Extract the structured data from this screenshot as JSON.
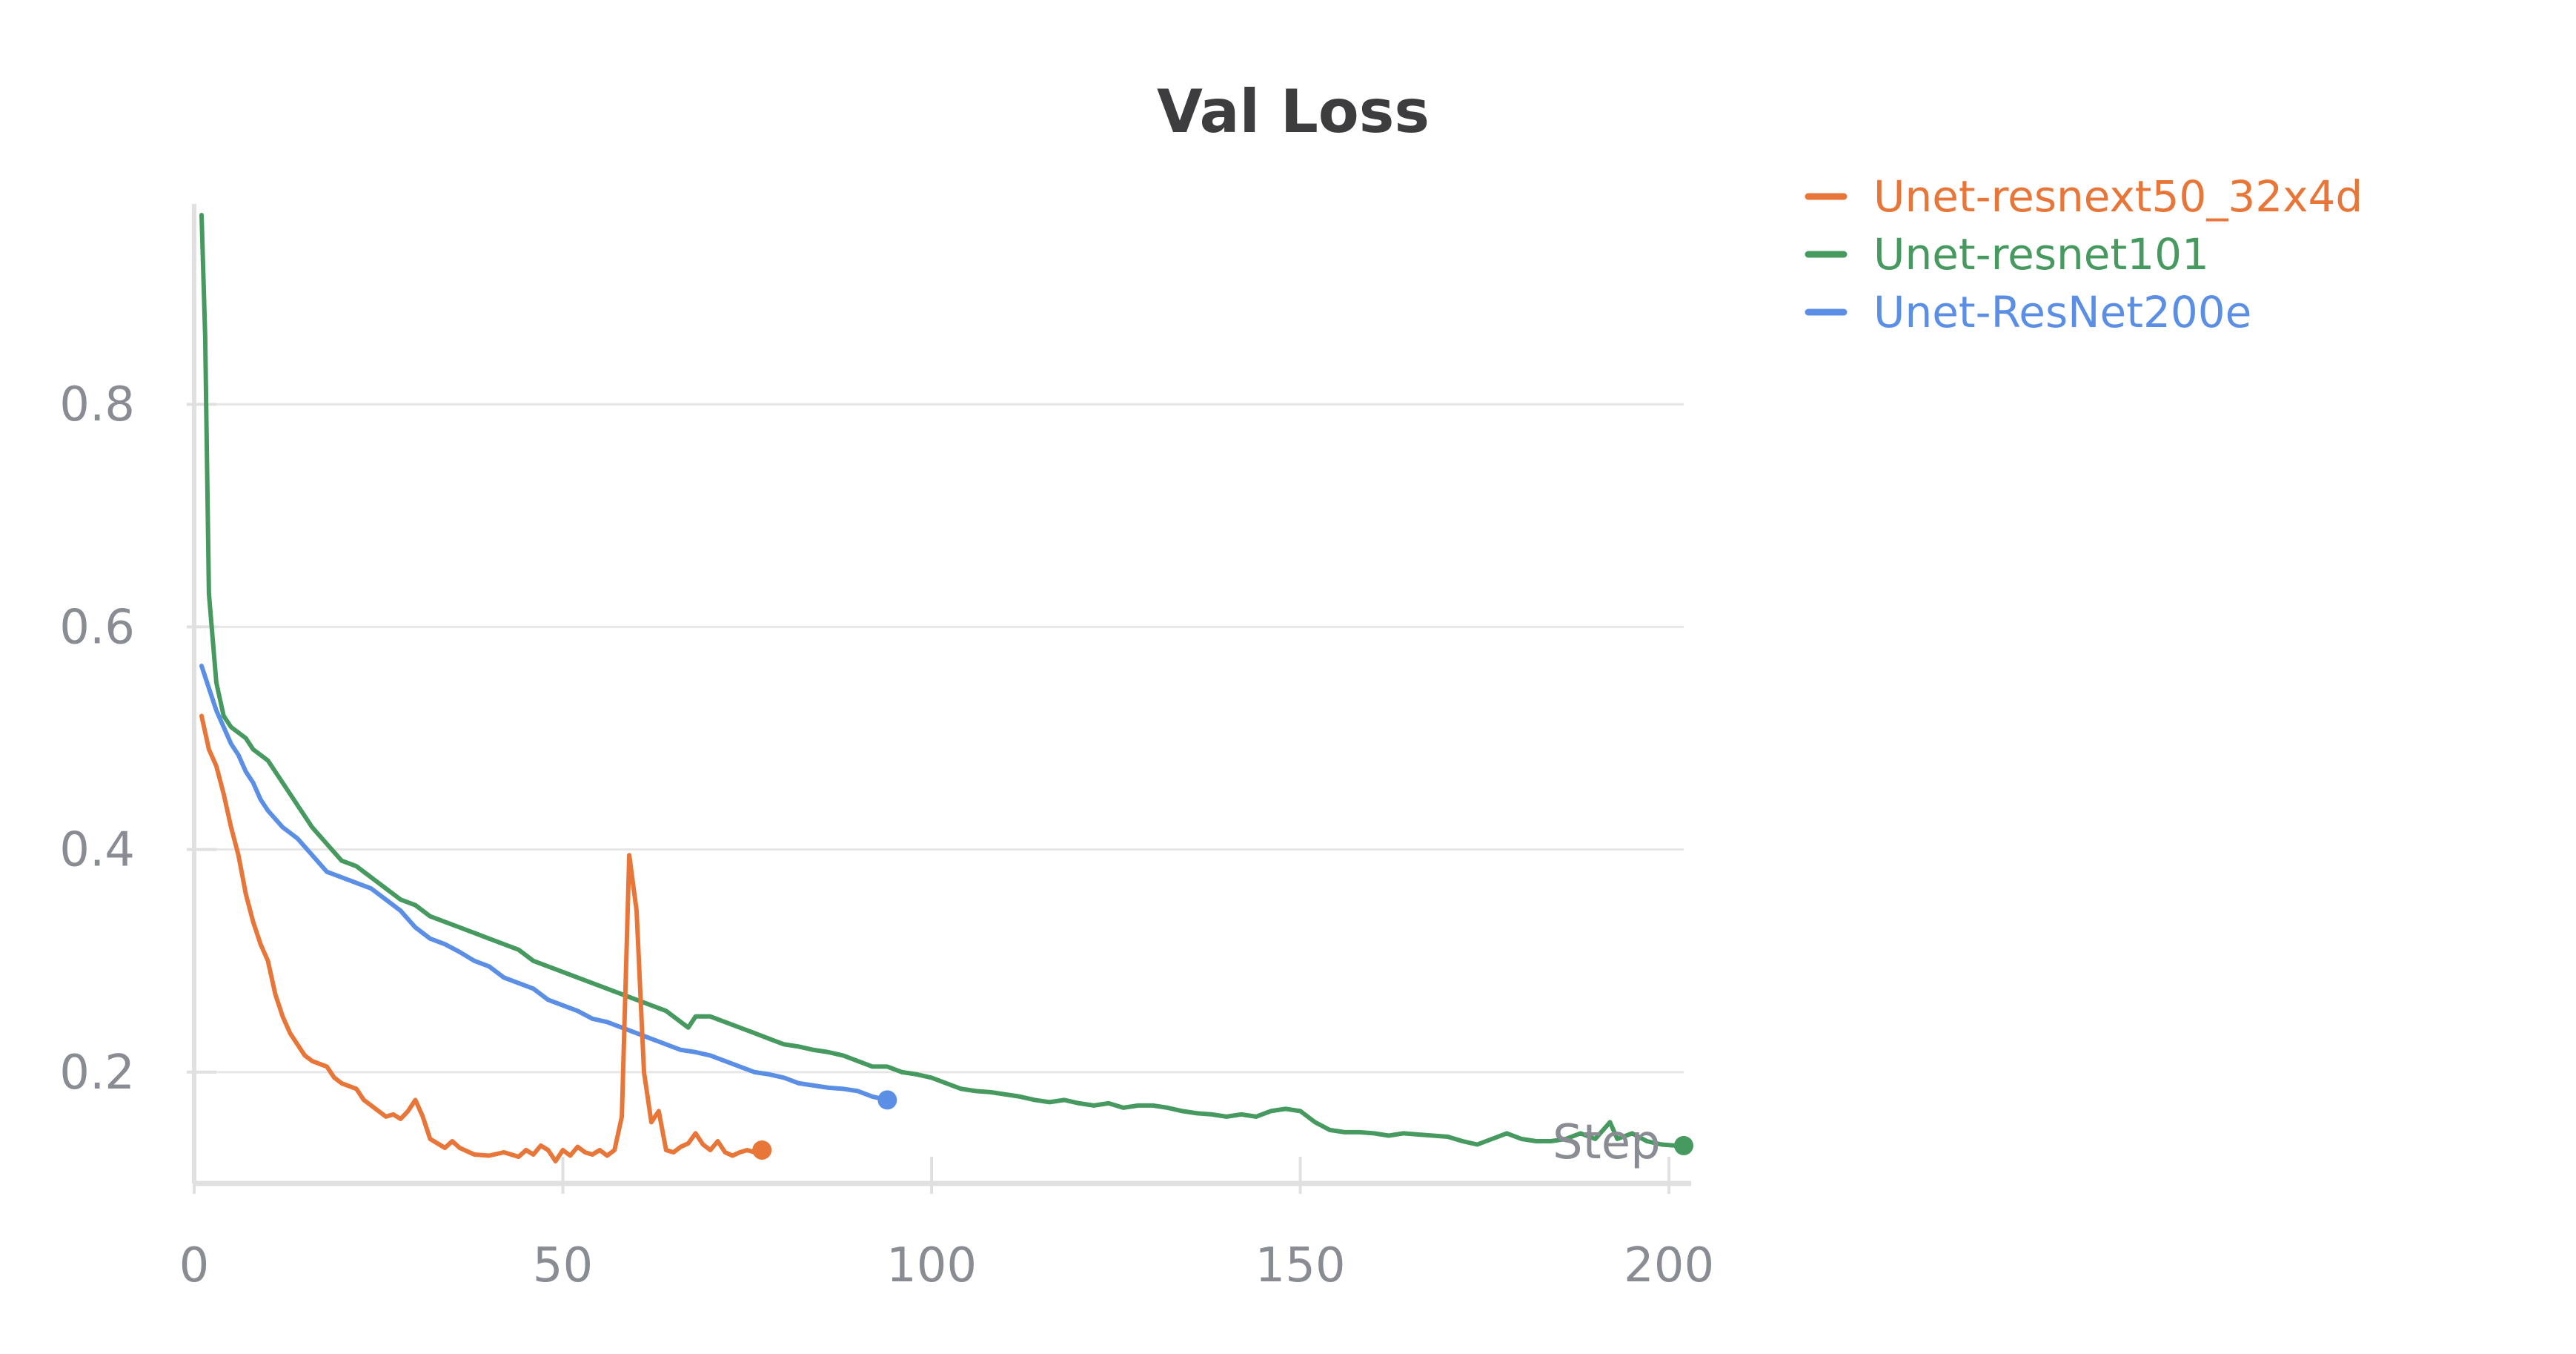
{
  "chart_data": {
    "type": "line",
    "title": "Val Loss",
    "xlabel": "Step",
    "ylabel": "",
    "xlim": [
      0,
      202
    ],
    "ylim": [
      0.1,
      0.98
    ],
    "x_ticks": [
      0,
      50,
      100,
      150,
      200
    ],
    "y_ticks": [
      0.2,
      0.4,
      0.6,
      0.8
    ],
    "x_tick_labels": [
      "0",
      "50",
      "100",
      "150",
      "200"
    ],
    "y_tick_labels": [
      "0.2",
      "0.4",
      "0.6",
      "0.8"
    ],
    "grid": true,
    "legend_position": "top-right",
    "series": [
      {
        "name": "Unet-resnext50_32x4d",
        "color": "#e87638",
        "points": [
          [
            1,
            0.52
          ],
          [
            2,
            0.49
          ],
          [
            3,
            0.475
          ],
          [
            4,
            0.45
          ],
          [
            5,
            0.42
          ],
          [
            6,
            0.395
          ],
          [
            7,
            0.36
          ],
          [
            8,
            0.335
          ],
          [
            9,
            0.315
          ],
          [
            10,
            0.3
          ],
          [
            11,
            0.27
          ],
          [
            12,
            0.25
          ],
          [
            13,
            0.235
          ],
          [
            14,
            0.225
          ],
          [
            15,
            0.215
          ],
          [
            16,
            0.21
          ],
          [
            18,
            0.205
          ],
          [
            19,
            0.195
          ],
          [
            20,
            0.19
          ],
          [
            22,
            0.185
          ],
          [
            23,
            0.175
          ],
          [
            25,
            0.165
          ],
          [
            26,
            0.16
          ],
          [
            27,
            0.162
          ],
          [
            28,
            0.158
          ],
          [
            29,
            0.165
          ],
          [
            30,
            0.175
          ],
          [
            31,
            0.16
          ],
          [
            32,
            0.14
          ],
          [
            34,
            0.132
          ],
          [
            35,
            0.138
          ],
          [
            36,
            0.132
          ],
          [
            38,
            0.126
          ],
          [
            40,
            0.125
          ],
          [
            42,
            0.128
          ],
          [
            44,
            0.124
          ],
          [
            45,
            0.13
          ],
          [
            46,
            0.126
          ],
          [
            47,
            0.134
          ],
          [
            48,
            0.13
          ],
          [
            49,
            0.12
          ],
          [
            50,
            0.13
          ],
          [
            51,
            0.125
          ],
          [
            52,
            0.133
          ],
          [
            53,
            0.128
          ],
          [
            54,
            0.126
          ],
          [
            55,
            0.13
          ],
          [
            56,
            0.125
          ],
          [
            57,
            0.13
          ],
          [
            58,
            0.16
          ],
          [
            59,
            0.395
          ],
          [
            60,
            0.345
          ],
          [
            61,
            0.2
          ],
          [
            62,
            0.155
          ],
          [
            63,
            0.165
          ],
          [
            64,
            0.13
          ],
          [
            65,
            0.128
          ],
          [
            66,
            0.133
          ],
          [
            67,
            0.136
          ],
          [
            68,
            0.145
          ],
          [
            69,
            0.135
          ],
          [
            70,
            0.13
          ],
          [
            71,
            0.138
          ],
          [
            72,
            0.128
          ],
          [
            73,
            0.125
          ],
          [
            74,
            0.128
          ],
          [
            75,
            0.13
          ],
          [
            76,
            0.128
          ],
          [
            77,
            0.13
          ]
        ]
      },
      {
        "name": "Unet-resnet101",
        "color": "#479a5f",
        "points": [
          [
            1,
            0.97
          ],
          [
            1.5,
            0.86
          ],
          [
            2,
            0.63
          ],
          [
            3,
            0.55
          ],
          [
            4,
            0.52
          ],
          [
            5,
            0.51
          ],
          [
            6,
            0.505
          ],
          [
            7,
            0.5
          ],
          [
            8,
            0.49
          ],
          [
            10,
            0.48
          ],
          [
            12,
            0.46
          ],
          [
            14,
            0.44
          ],
          [
            16,
            0.42
          ],
          [
            18,
            0.405
          ],
          [
            20,
            0.39
          ],
          [
            22,
            0.385
          ],
          [
            24,
            0.375
          ],
          [
            26,
            0.365
          ],
          [
            28,
            0.355
          ],
          [
            30,
            0.35
          ],
          [
            32,
            0.34
          ],
          [
            34,
            0.335
          ],
          [
            36,
            0.33
          ],
          [
            38,
            0.325
          ],
          [
            40,
            0.32
          ],
          [
            42,
            0.315
          ],
          [
            44,
            0.31
          ],
          [
            46,
            0.3
          ],
          [
            48,
            0.295
          ],
          [
            50,
            0.29
          ],
          [
            52,
            0.285
          ],
          [
            54,
            0.28
          ],
          [
            56,
            0.275
          ],
          [
            58,
            0.27
          ],
          [
            60,
            0.265
          ],
          [
            62,
            0.26
          ],
          [
            64,
            0.255
          ],
          [
            66,
            0.245
          ],
          [
            67,
            0.24
          ],
          [
            68,
            0.25
          ],
          [
            70,
            0.25
          ],
          [
            72,
            0.245
          ],
          [
            74,
            0.24
          ],
          [
            76,
            0.235
          ],
          [
            78,
            0.23
          ],
          [
            80,
            0.225
          ],
          [
            82,
            0.223
          ],
          [
            84,
            0.22
          ],
          [
            86,
            0.218
          ],
          [
            88,
            0.215
          ],
          [
            90,
            0.21
          ],
          [
            92,
            0.205
          ],
          [
            94,
            0.205
          ],
          [
            96,
            0.2
          ],
          [
            98,
            0.198
          ],
          [
            100,
            0.195
          ],
          [
            102,
            0.19
          ],
          [
            104,
            0.185
          ],
          [
            106,
            0.183
          ],
          [
            108,
            0.182
          ],
          [
            110,
            0.18
          ],
          [
            112,
            0.178
          ],
          [
            114,
            0.175
          ],
          [
            116,
            0.173
          ],
          [
            118,
            0.175
          ],
          [
            120,
            0.172
          ],
          [
            122,
            0.17
          ],
          [
            124,
            0.172
          ],
          [
            126,
            0.168
          ],
          [
            128,
            0.17
          ],
          [
            130,
            0.17
          ],
          [
            132,
            0.168
          ],
          [
            134,
            0.165
          ],
          [
            136,
            0.163
          ],
          [
            138,
            0.162
          ],
          [
            140,
            0.16
          ],
          [
            142,
            0.162
          ],
          [
            144,
            0.16
          ],
          [
            146,
            0.165
          ],
          [
            148,
            0.167
          ],
          [
            150,
            0.165
          ],
          [
            152,
            0.155
          ],
          [
            154,
            0.148
          ],
          [
            156,
            0.146
          ],
          [
            158,
            0.146
          ],
          [
            160,
            0.145
          ],
          [
            162,
            0.143
          ],
          [
            164,
            0.145
          ],
          [
            166,
            0.144
          ],
          [
            168,
            0.143
          ],
          [
            170,
            0.142
          ],
          [
            172,
            0.138
          ],
          [
            174,
            0.135
          ],
          [
            176,
            0.14
          ],
          [
            178,
            0.145
          ],
          [
            180,
            0.14
          ],
          [
            182,
            0.138
          ],
          [
            184,
            0.138
          ],
          [
            186,
            0.14
          ],
          [
            188,
            0.145
          ],
          [
            190,
            0.14
          ],
          [
            192,
            0.155
          ],
          [
            193,
            0.14
          ],
          [
            195,
            0.145
          ],
          [
            197,
            0.138
          ],
          [
            199,
            0.135
          ],
          [
            201,
            0.134
          ],
          [
            202,
            0.134
          ]
        ]
      },
      {
        "name": "Unet-ResNet200e",
        "color": "#5b8fe6",
        "points": [
          [
            1,
            0.565
          ],
          [
            2,
            0.545
          ],
          [
            3,
            0.525
          ],
          [
            4,
            0.51
          ],
          [
            5,
            0.495
          ],
          [
            6,
            0.485
          ],
          [
            7,
            0.47
          ],
          [
            8,
            0.46
          ],
          [
            9,
            0.445
          ],
          [
            10,
            0.435
          ],
          [
            12,
            0.42
          ],
          [
            14,
            0.41
          ],
          [
            16,
            0.395
          ],
          [
            18,
            0.38
          ],
          [
            20,
            0.375
          ],
          [
            22,
            0.37
          ],
          [
            24,
            0.365
          ],
          [
            26,
            0.355
          ],
          [
            28,
            0.345
          ],
          [
            30,
            0.33
          ],
          [
            32,
            0.32
          ],
          [
            34,
            0.315
          ],
          [
            36,
            0.308
          ],
          [
            38,
            0.3
          ],
          [
            40,
            0.295
          ],
          [
            42,
            0.285
          ],
          [
            44,
            0.28
          ],
          [
            46,
            0.275
          ],
          [
            48,
            0.265
          ],
          [
            50,
            0.26
          ],
          [
            52,
            0.255
          ],
          [
            54,
            0.248
          ],
          [
            56,
            0.245
          ],
          [
            58,
            0.24
          ],
          [
            60,
            0.235
          ],
          [
            62,
            0.23
          ],
          [
            64,
            0.225
          ],
          [
            66,
            0.22
          ],
          [
            68,
            0.218
          ],
          [
            70,
            0.215
          ],
          [
            72,
            0.21
          ],
          [
            74,
            0.205
          ],
          [
            76,
            0.2
          ],
          [
            78,
            0.198
          ],
          [
            80,
            0.195
          ],
          [
            82,
            0.19
          ],
          [
            84,
            0.188
          ],
          [
            86,
            0.186
          ],
          [
            88,
            0.185
          ],
          [
            90,
            0.183
          ],
          [
            92,
            0.178
          ],
          [
            94,
            0.175
          ]
        ]
      }
    ]
  }
}
